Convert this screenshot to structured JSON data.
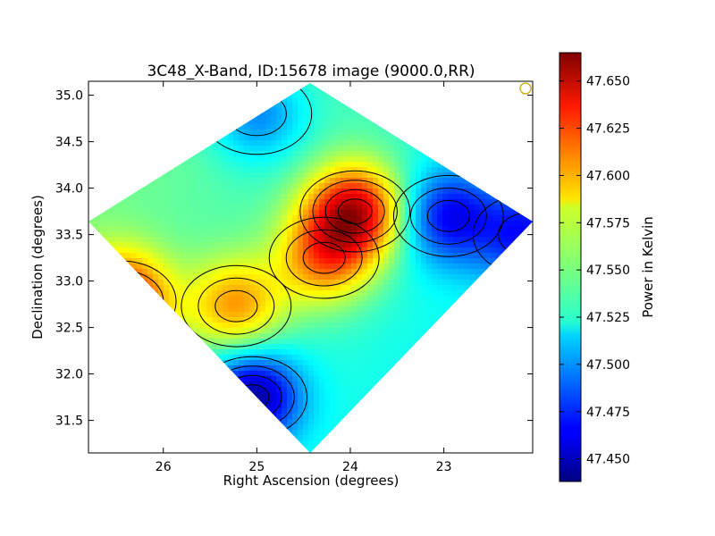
{
  "chart_data": {
    "type": "heatmap",
    "title": "3C48_X-Band, ID:15678 image (9000.0,RR)",
    "xlabel": "Right Ascension (degrees)",
    "ylabel": "Declination (degrees)",
    "xlim": [
      26.8,
      22.05
    ],
    "ylim": [
      31.15,
      35.15
    ],
    "x_ticks": [
      {
        "value": 26,
        "label": "26"
      },
      {
        "value": 25,
        "label": "25"
      },
      {
        "value": 24,
        "label": "24"
      },
      {
        "value": 23,
        "label": "23"
      }
    ],
    "y_ticks": [
      {
        "value": 31.5,
        "label": "31.5"
      },
      {
        "value": 32.0,
        "label": "32.0"
      },
      {
        "value": 32.5,
        "label": "32.5"
      },
      {
        "value": 33.0,
        "label": "33.0"
      },
      {
        "value": 33.5,
        "label": "33.5"
      },
      {
        "value": 34.0,
        "label": "34.0"
      },
      {
        "value": 34.5,
        "label": "34.5"
      },
      {
        "value": 35.0,
        "label": "35.0"
      }
    ],
    "colorbar": {
      "label": "Power in Kelvin",
      "range": [
        47.438,
        47.665
      ],
      "ticks": [
        "47.450",
        "47.475",
        "47.500",
        "47.525",
        "47.550",
        "47.575",
        "47.600",
        "47.625",
        "47.650"
      ],
      "colormap": "jet"
    },
    "features": [
      {
        "ra": 26.45,
        "dec": 32.78,
        "value": 47.64,
        "kind": "maximum"
      },
      {
        "ra": 23.95,
        "dec": 33.75,
        "value": 47.645,
        "kind": "maximum"
      },
      {
        "ra": 24.28,
        "dec": 33.25,
        "value": 47.605,
        "kind": "maximum"
      },
      {
        "ra": 25.22,
        "dec": 32.73,
        "value": 47.6,
        "kind": "maximum"
      },
      {
        "ra": 22.95,
        "dec": 33.7,
        "value": 47.47,
        "kind": "minimum"
      },
      {
        "ra": 25.05,
        "dec": 31.75,
        "value": 47.445,
        "kind": "minimum"
      },
      {
        "ra": 25.0,
        "dec": 34.8,
        "value": 47.49,
        "kind": "minimum"
      },
      {
        "ra": 22.1,
        "dec": 33.5,
        "value": 47.48,
        "kind": "minimum"
      }
    ],
    "background_value": 47.535,
    "marker": {
      "ra": 22.1,
      "dec": 35.1,
      "shape": "circle",
      "color": "#c8a800"
    }
  }
}
